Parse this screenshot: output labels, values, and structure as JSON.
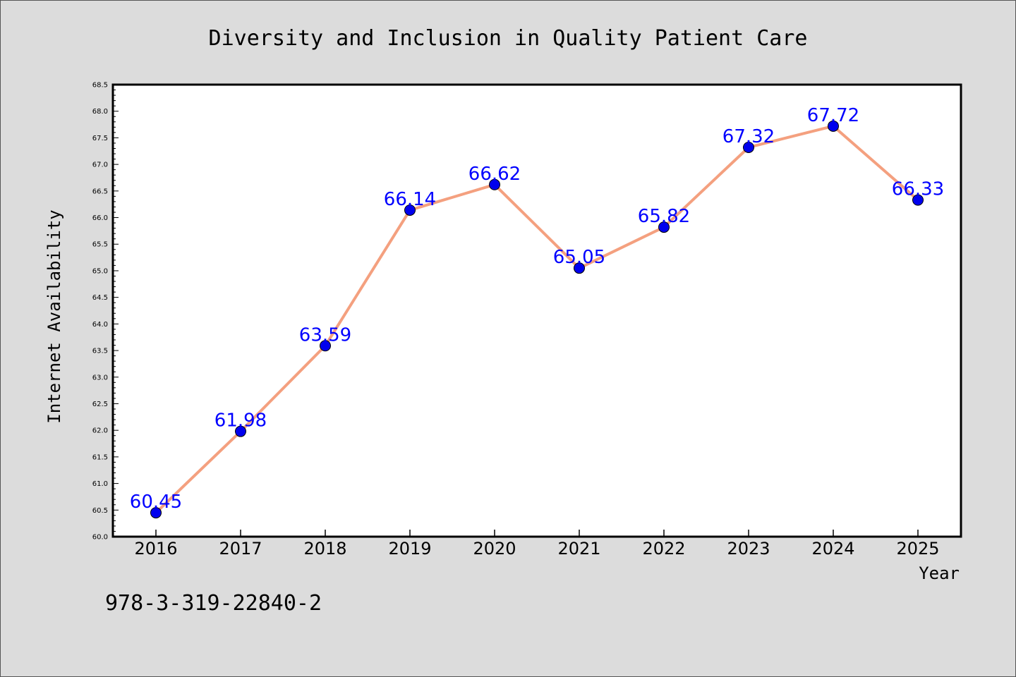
{
  "chart_data": {
    "type": "line",
    "title": "Diversity and Inclusion in Quality Patient Care",
    "xlabel": "Year",
    "ylabel": "Internet Availability",
    "categories": [
      "2016",
      "2017",
      "2018",
      "2019",
      "2020",
      "2021",
      "2022",
      "2023",
      "2024",
      "2025"
    ],
    "values": [
      60.45,
      61.98,
      63.59,
      66.14,
      66.62,
      65.05,
      65.82,
      67.32,
      67.72,
      66.33
    ],
    "data_labels": [
      "60.45",
      "61.98",
      "63.59",
      "66.14",
      "66.62",
      "65.05",
      "65.82",
      "67.32",
      "67.72",
      "66.33"
    ],
    "ylim": [
      60.0,
      68.5
    ],
    "yticks": [
      "60.0",
      "60.5",
      "61.0",
      "61.5",
      "62.0",
      "62.5",
      "63.0",
      "63.5",
      "64.0",
      "64.5",
      "65.0",
      "65.5",
      "66.0",
      "66.5",
      "67.0",
      "67.5",
      "68.0",
      "68.5"
    ],
    "grid": false,
    "legend": "none",
    "colors": {
      "line": "#f4a07f",
      "marker": "#0000ee",
      "label": "#0000ff",
      "background": "#dcdcdc",
      "plot_background": "#ffffff"
    }
  },
  "footnote": "978-3-319-22840-2"
}
